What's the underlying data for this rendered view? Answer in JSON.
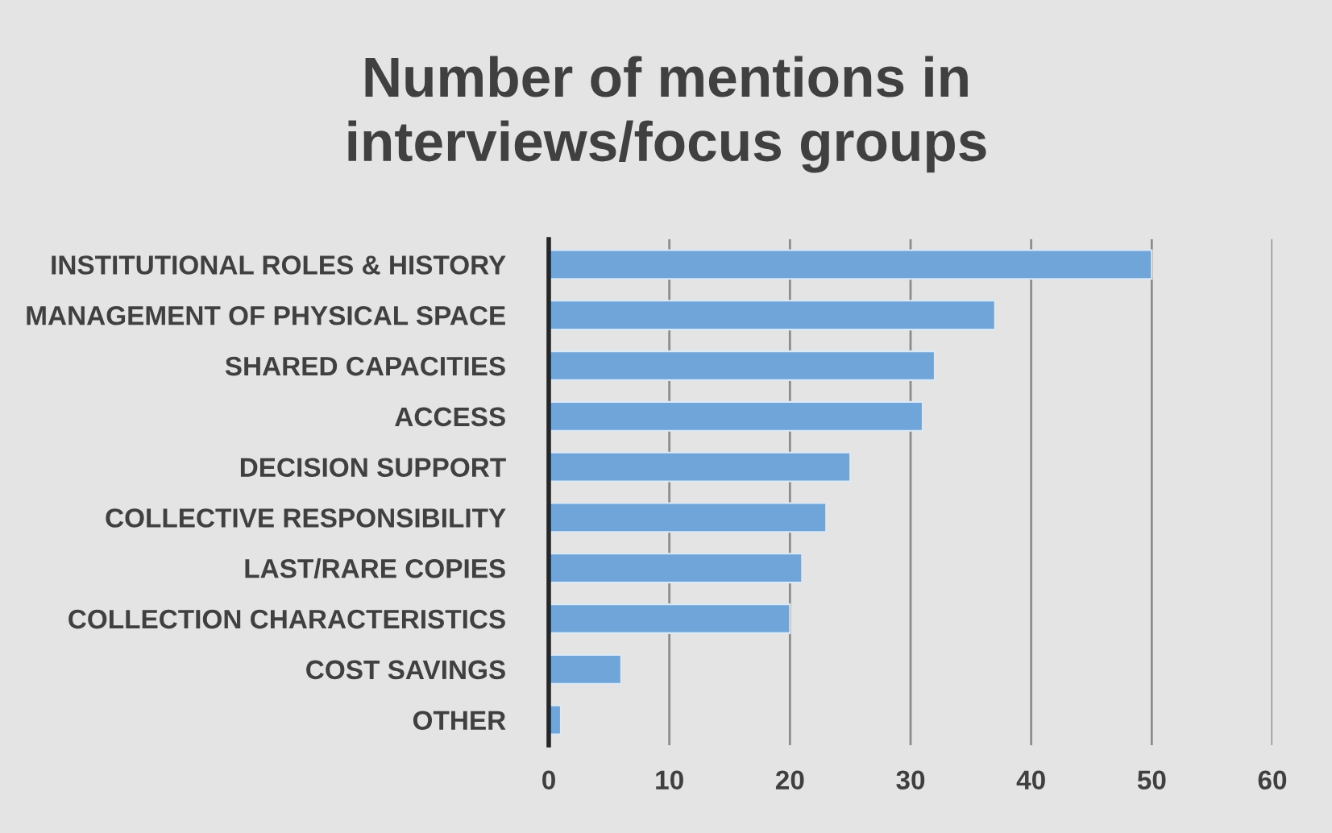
{
  "chart_data": {
    "type": "bar",
    "orientation": "horizontal",
    "title": "Number of mentions in\ninterviews/focus groups",
    "categories": [
      "INSTITUTIONAL ROLES & HISTORY",
      "MANAGEMENT OF PHYSICAL SPACE",
      "SHARED CAPACITIES",
      "ACCESS",
      "DECISION SUPPORT",
      "COLLECTIVE RESPONSIBILITY",
      "LAST/RARE COPIES",
      "COLLECTION CHARACTERISTICS",
      "COST SAVINGS",
      "OTHER"
    ],
    "values": [
      50,
      37,
      32,
      31,
      25,
      23,
      21,
      20,
      6,
      1
    ],
    "color": "#6fa5d8",
    "xlim": [
      0,
      60
    ],
    "xticks": [
      0,
      10,
      20,
      30,
      40,
      50,
      60
    ],
    "grid": "x"
  }
}
